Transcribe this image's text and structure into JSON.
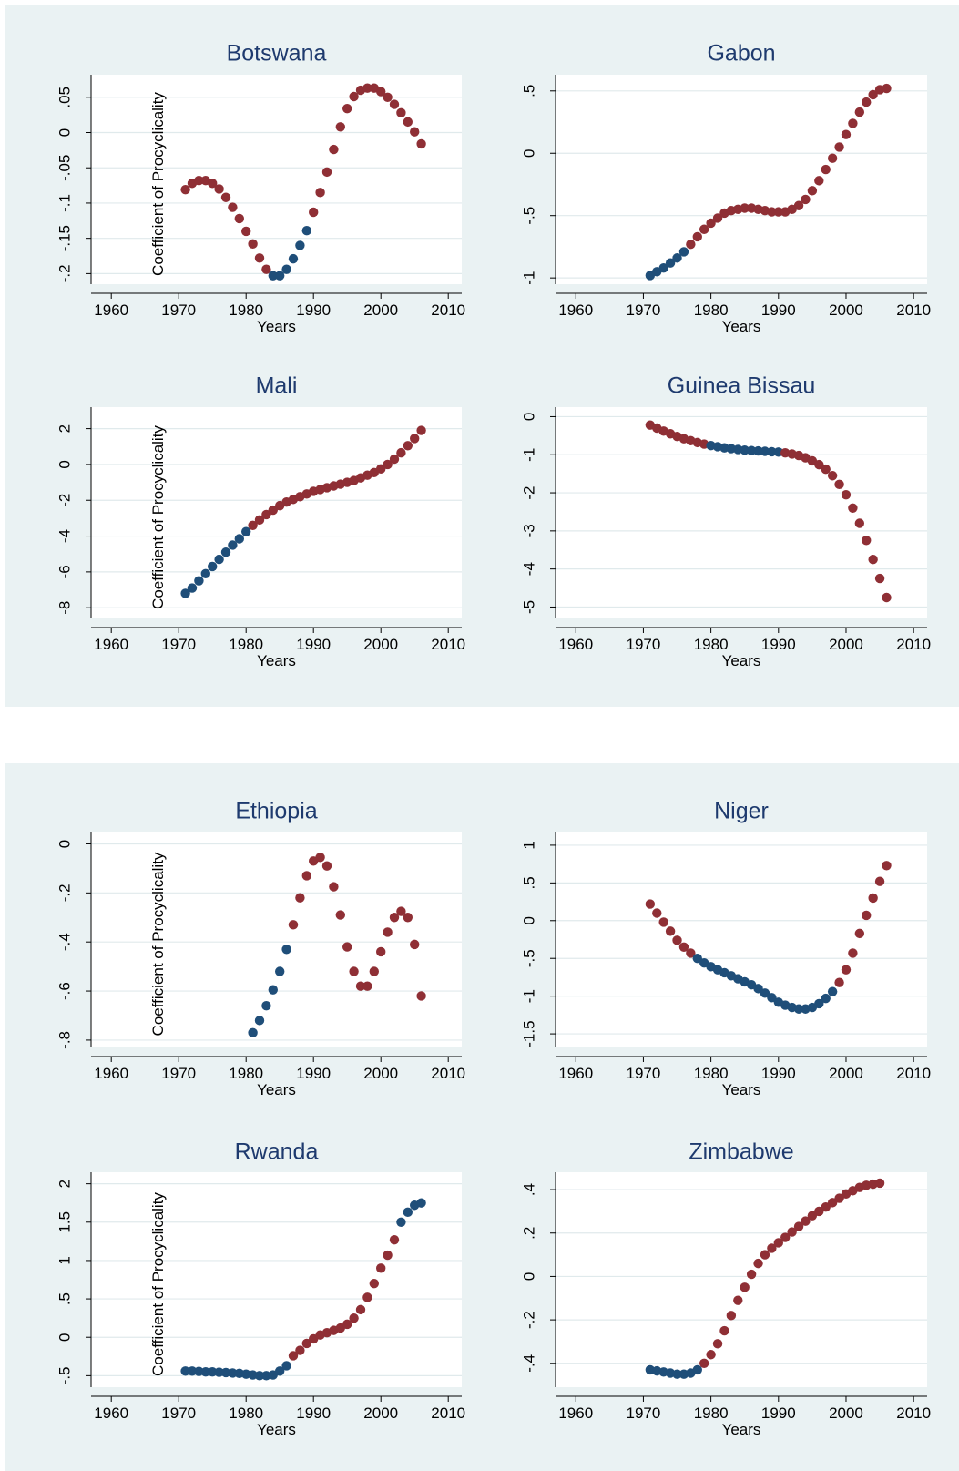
{
  "colors": {
    "background": "#eaf2f3",
    "plot_bg": "#ffffff",
    "title": "#1e3a6e",
    "grid": "#e0eaec",
    "red": "#8f2f35",
    "blue": "#1f4e79",
    "axis": "#000000"
  },
  "chart_data": [
    {
      "type": "scatter",
      "title": "Botswana",
      "xlabel": "Years",
      "ylabel": "Coefficient of Procyclicality",
      "xlim": [
        1957,
        2012
      ],
      "ylim": [
        -0.215,
        0.082
      ],
      "xticks": [
        1960,
        1970,
        1980,
        1990,
        2000,
        2010
      ],
      "xtick_labels": [
        "1960",
        "1970",
        "1980",
        "1990",
        "2000",
        "2010"
      ],
      "yticks": [
        -0.2,
        -0.15,
        -0.1,
        -0.05,
        0,
        0.05
      ],
      "ytick_labels": [
        "-.2",
        "-.15",
        "-.1",
        "-.05",
        "0",
        ".05"
      ],
      "x": [
        1971,
        1972,
        1973,
        1974,
        1975,
        1976,
        1977,
        1978,
        1979,
        1980,
        1981,
        1982,
        1983,
        1984,
        1985,
        1986,
        1987,
        1988,
        1989,
        1990,
        1991,
        1992,
        1993,
        1994,
        1995,
        1996,
        1997,
        1998,
        1999,
        2000,
        2001,
        2002,
        2003,
        2004,
        2005,
        2006
      ],
      "y": [
        -0.081,
        -0.072,
        -0.068,
        -0.068,
        -0.072,
        -0.08,
        -0.092,
        -0.106,
        -0.122,
        -0.14,
        -0.158,
        -0.178,
        -0.194,
        -0.203,
        -0.203,
        -0.194,
        -0.179,
        -0.16,
        -0.139,
        -0.113,
        -0.085,
        -0.056,
        -0.024,
        0.008,
        0.034,
        0.051,
        0.06,
        0.063,
        0.063,
        0.058,
        0.05,
        0.04,
        0.028,
        0.015,
        0.001,
        -0.016
      ],
      "colors": [
        "red",
        "red",
        "red",
        "red",
        "red",
        "red",
        "red",
        "red",
        "red",
        "red",
        "red",
        "red",
        "red",
        "blue",
        "blue",
        "blue",
        "blue",
        "blue",
        "blue",
        "red",
        "red",
        "red",
        "red",
        "red",
        "red",
        "red",
        "red",
        "red",
        "red",
        "red",
        "red",
        "red",
        "red",
        "red",
        "red",
        "red"
      ]
    },
    {
      "type": "scatter",
      "title": "Gabon",
      "xlabel": "Years",
      "ylabel": "",
      "xlim": [
        1957,
        2012
      ],
      "ylim": [
        -1.05,
        0.63
      ],
      "xticks": [
        1960,
        1970,
        1980,
        1990,
        2000,
        2010
      ],
      "xtick_labels": [
        "1960",
        "1970",
        "1980",
        "1990",
        "2000",
        "2010"
      ],
      "yticks": [
        -1,
        -0.5,
        0,
        0.5
      ],
      "ytick_labels": [
        "-1",
        "-.5",
        "0",
        ".5"
      ],
      "x": [
        1971,
        1972,
        1973,
        1974,
        1975,
        1976,
        1977,
        1978,
        1979,
        1980,
        1981,
        1982,
        1983,
        1984,
        1985,
        1986,
        1987,
        1988,
        1989,
        1990,
        1991,
        1992,
        1993,
        1994,
        1995,
        1996,
        1997,
        1998,
        1999,
        2000,
        2001,
        2002,
        2003,
        2004,
        2005,
        2006
      ],
      "y": [
        -0.98,
        -0.95,
        -0.92,
        -0.88,
        -0.84,
        -0.79,
        -0.73,
        -0.67,
        -0.61,
        -0.56,
        -0.52,
        -0.48,
        -0.46,
        -0.45,
        -0.44,
        -0.44,
        -0.45,
        -0.46,
        -0.47,
        -0.47,
        -0.47,
        -0.45,
        -0.42,
        -0.37,
        -0.3,
        -0.22,
        -0.13,
        -0.04,
        0.05,
        0.15,
        0.24,
        0.33,
        0.41,
        0.47,
        0.51,
        0.52
      ],
      "colors": [
        "blue",
        "blue",
        "blue",
        "blue",
        "blue",
        "blue",
        "red",
        "red",
        "red",
        "red",
        "red",
        "red",
        "red",
        "red",
        "red",
        "red",
        "red",
        "red",
        "red",
        "red",
        "red",
        "red",
        "red",
        "red",
        "red",
        "red",
        "red",
        "red",
        "red",
        "red",
        "red",
        "red",
        "red",
        "red",
        "red",
        "red"
      ]
    },
    {
      "type": "scatter",
      "title": "Mali",
      "xlabel": "Years",
      "ylabel": "Coefficient of Procyclicality",
      "xlim": [
        1957,
        2012
      ],
      "ylim": [
        -8.6,
        3.2
      ],
      "xticks": [
        1960,
        1970,
        1980,
        1990,
        2000,
        2010
      ],
      "xtick_labels": [
        "1960",
        "1970",
        "1980",
        "1990",
        "2000",
        "2010"
      ],
      "yticks": [
        -8,
        -6,
        -4,
        -2,
        0,
        2
      ],
      "ytick_labels": [
        "-8",
        "-6",
        "-4",
        "-2",
        "0",
        "2"
      ],
      "x": [
        1971,
        1972,
        1973,
        1974,
        1975,
        1976,
        1977,
        1978,
        1979,
        1980,
        1981,
        1982,
        1983,
        1984,
        1985,
        1986,
        1987,
        1988,
        1989,
        1990,
        1991,
        1992,
        1993,
        1994,
        1995,
        1996,
        1997,
        1998,
        1999,
        2000,
        2001,
        2002,
        2003,
        2004,
        2005,
        2006
      ],
      "y": [
        -7.2,
        -6.9,
        -6.5,
        -6.1,
        -5.7,
        -5.3,
        -4.9,
        -4.5,
        -4.15,
        -3.75,
        -3.4,
        -3.1,
        -2.8,
        -2.55,
        -2.3,
        -2.1,
        -1.95,
        -1.8,
        -1.65,
        -1.5,
        -1.4,
        -1.3,
        -1.2,
        -1.1,
        -1.0,
        -0.9,
        -0.75,
        -0.6,
        -0.45,
        -0.25,
        0.0,
        0.3,
        0.65,
        1.05,
        1.45,
        1.9
      ],
      "colors": [
        "blue",
        "blue",
        "blue",
        "blue",
        "blue",
        "blue",
        "blue",
        "blue",
        "blue",
        "blue",
        "red",
        "red",
        "red",
        "red",
        "red",
        "red",
        "red",
        "red",
        "red",
        "red",
        "red",
        "red",
        "red",
        "red",
        "red",
        "red",
        "red",
        "red",
        "red",
        "red",
        "red",
        "red",
        "red",
        "red",
        "red",
        "red"
      ]
    },
    {
      "type": "scatter",
      "title": "Guinea Bissau",
      "xlabel": "Years",
      "ylabel": "",
      "xlim": [
        1957,
        2012
      ],
      "ylim": [
        -5.3,
        0.25
      ],
      "xticks": [
        1960,
        1970,
        1980,
        1990,
        2000,
        2010
      ],
      "xtick_labels": [
        "1960",
        "1970",
        "1980",
        "1990",
        "2000",
        "2010"
      ],
      "yticks": [
        -5,
        -4,
        -3,
        -2,
        -1,
        0
      ],
      "ytick_labels": [
        "-5",
        "-4",
        "-3",
        "-2",
        "-1",
        "0"
      ],
      "x": [
        1971,
        1972,
        1973,
        1974,
        1975,
        1976,
        1977,
        1978,
        1979,
        1980,
        1981,
        1982,
        1983,
        1984,
        1985,
        1986,
        1987,
        1988,
        1989,
        1990,
        1991,
        1992,
        1993,
        1994,
        1995,
        1996,
        1997,
        1998,
        1999,
        2000,
        2001,
        2002,
        2003,
        2004,
        2005,
        2006
      ],
      "y": [
        -0.22,
        -0.3,
        -0.38,
        -0.45,
        -0.52,
        -0.58,
        -0.63,
        -0.68,
        -0.72,
        -0.76,
        -0.79,
        -0.82,
        -0.84,
        -0.86,
        -0.88,
        -0.89,
        -0.9,
        -0.91,
        -0.92,
        -0.93,
        -0.95,
        -0.98,
        -1.02,
        -1.08,
        -1.16,
        -1.26,
        -1.38,
        -1.55,
        -1.78,
        -2.05,
        -2.4,
        -2.8,
        -3.25,
        -3.75,
        -4.25,
        -4.75
      ],
      "colors": [
        "red",
        "red",
        "red",
        "red",
        "red",
        "red",
        "red",
        "red",
        "red",
        "blue",
        "blue",
        "blue",
        "blue",
        "blue",
        "blue",
        "blue",
        "blue",
        "blue",
        "blue",
        "blue",
        "red",
        "red",
        "red",
        "red",
        "red",
        "red",
        "red",
        "red",
        "red",
        "red",
        "red",
        "red",
        "red",
        "red",
        "red",
        "red"
      ]
    },
    {
      "type": "scatter",
      "title": "Ethiopia",
      "xlabel": "Years",
      "ylabel": "Coefficient of Procyclicality",
      "xlim": [
        1957,
        2012
      ],
      "ylim": [
        -0.83,
        0.05
      ],
      "xticks": [
        1960,
        1970,
        1980,
        1990,
        2000,
        2010
      ],
      "xtick_labels": [
        "1960",
        "1970",
        "1980",
        "1990",
        "2000",
        "2010"
      ],
      "yticks": [
        -0.8,
        -0.6,
        -0.4,
        -0.2,
        0
      ],
      "ytick_labels": [
        "-.8",
        "-.6",
        "-.4",
        "-.2",
        "0"
      ],
      "x": [
        1981,
        1982,
        1983,
        1984,
        1985,
        1986,
        1987,
        1988,
        1989,
        1990,
        1991,
        1992,
        1993,
        1994,
        1995,
        1996,
        1997,
        1998,
        1999,
        2000,
        2001,
        2002,
        2003,
        2004,
        2005,
        2006
      ],
      "y": [
        -0.77,
        -0.72,
        -0.66,
        -0.595,
        -0.52,
        -0.43,
        -0.33,
        -0.22,
        -0.13,
        -0.07,
        -0.055,
        -0.09,
        -0.175,
        -0.29,
        -0.42,
        -0.52,
        -0.58,
        -0.58,
        -0.52,
        -0.44,
        -0.36,
        -0.3,
        -0.275,
        -0.3,
        -0.41,
        -0.62
      ],
      "colors": [
        "blue",
        "blue",
        "blue",
        "blue",
        "blue",
        "blue",
        "red",
        "red",
        "red",
        "red",
        "red",
        "red",
        "red",
        "red",
        "red",
        "red",
        "red",
        "red",
        "red",
        "red",
        "red",
        "red",
        "red",
        "red",
        "red",
        "red"
      ]
    },
    {
      "type": "scatter",
      "title": "Niger",
      "xlabel": "Years",
      "ylabel": "",
      "xlim": [
        1957,
        2012
      ],
      "ylim": [
        -1.68,
        1.18
      ],
      "xticks": [
        1960,
        1970,
        1980,
        1990,
        2000,
        2010
      ],
      "xtick_labels": [
        "1960",
        "1970",
        "1980",
        "1990",
        "2000",
        "2010"
      ],
      "yticks": [
        -1.5,
        -1,
        -0.5,
        0,
        0.5,
        1
      ],
      "ytick_labels": [
        "-1.5",
        "-1",
        "-.5",
        "0",
        ".5",
        "1"
      ],
      "x": [
        1971,
        1972,
        1973,
        1974,
        1975,
        1976,
        1977,
        1978,
        1979,
        1980,
        1981,
        1982,
        1983,
        1984,
        1985,
        1986,
        1987,
        1988,
        1989,
        1990,
        1991,
        1992,
        1993,
        1994,
        1995,
        1996,
        1997,
        1998,
        1999,
        2000,
        2001,
        2002,
        2003,
        2004,
        2005,
        2006
      ],
      "y": [
        0.22,
        0.1,
        -0.02,
        -0.14,
        -0.26,
        -0.35,
        -0.43,
        -0.5,
        -0.56,
        -0.61,
        -0.65,
        -0.69,
        -0.73,
        -0.77,
        -0.81,
        -0.85,
        -0.9,
        -0.96,
        -1.02,
        -1.08,
        -1.12,
        -1.15,
        -1.17,
        -1.17,
        -1.15,
        -1.1,
        -1.03,
        -0.94,
        -0.82,
        -0.65,
        -0.43,
        -0.17,
        0.07,
        0.3,
        0.52,
        0.73
      ],
      "colors": [
        "red",
        "red",
        "red",
        "red",
        "red",
        "red",
        "red",
        "blue",
        "blue",
        "blue",
        "blue",
        "blue",
        "blue",
        "blue",
        "blue",
        "blue",
        "blue",
        "blue",
        "blue",
        "blue",
        "blue",
        "blue",
        "blue",
        "blue",
        "blue",
        "blue",
        "blue",
        "blue",
        "red",
        "red",
        "red",
        "red",
        "red",
        "red",
        "red",
        "red"
      ]
    },
    {
      "type": "scatter",
      "title": "Rwanda",
      "xlabel": "Years",
      "ylabel": "Coefficient of Procyclicality",
      "xlim": [
        1957,
        2012
      ],
      "ylim": [
        -0.65,
        2.15
      ],
      "xticks": [
        1960,
        1970,
        1980,
        1990,
        2000,
        2010
      ],
      "xtick_labels": [
        "1960",
        "1970",
        "1980",
        "1990",
        "2000",
        "2010"
      ],
      "yticks": [
        -0.5,
        0,
        0.5,
        1,
        1.5,
        2
      ],
      "ytick_labels": [
        "-.5",
        "0",
        ".5",
        "1",
        "1.5",
        "2"
      ],
      "x": [
        1971,
        1972,
        1973,
        1974,
        1975,
        1976,
        1977,
        1978,
        1979,
        1980,
        1981,
        1982,
        1983,
        1984,
        1985,
        1986,
        1987,
        1988,
        1989,
        1990,
        1991,
        1992,
        1993,
        1994,
        1995,
        1996,
        1997,
        1998,
        1999,
        2000,
        2001,
        2002,
        2003,
        2004,
        2005,
        2006
      ],
      "y": [
        -0.44,
        -0.44,
        -0.445,
        -0.45,
        -0.45,
        -0.455,
        -0.46,
        -0.465,
        -0.47,
        -0.48,
        -0.49,
        -0.5,
        -0.5,
        -0.49,
        -0.44,
        -0.37,
        -0.24,
        -0.17,
        -0.08,
        -0.02,
        0.03,
        0.06,
        0.09,
        0.12,
        0.17,
        0.25,
        0.36,
        0.52,
        0.7,
        0.9,
        1.07,
        1.27,
        1.5,
        1.63,
        1.72,
        1.75
      ],
      "colors": [
        "blue",
        "blue",
        "blue",
        "blue",
        "blue",
        "blue",
        "blue",
        "blue",
        "blue",
        "blue",
        "blue",
        "blue",
        "blue",
        "blue",
        "blue",
        "blue",
        "red",
        "red",
        "red",
        "red",
        "red",
        "red",
        "red",
        "red",
        "red",
        "red",
        "red",
        "red",
        "red",
        "red",
        "red",
        "red",
        "blue",
        "blue",
        "blue",
        "blue"
      ]
    },
    {
      "type": "scatter",
      "title": "Zimbabwe",
      "xlabel": "Years",
      "ylabel": "",
      "xlim": [
        1957,
        2012
      ],
      "ylim": [
        -0.51,
        0.48
      ],
      "xticks": [
        1960,
        1970,
        1980,
        1990,
        2000,
        2010
      ],
      "xtick_labels": [
        "1960",
        "1970",
        "1980",
        "1990",
        "2000",
        "2010"
      ],
      "yticks": [
        -0.4,
        -0.2,
        0,
        0.2,
        0.4
      ],
      "ytick_labels": [
        "-.4",
        "-.2",
        "0",
        ".2",
        ".4"
      ],
      "x": [
        1971,
        1972,
        1973,
        1974,
        1975,
        1976,
        1977,
        1978,
        1979,
        1980,
        1981,
        1982,
        1983,
        1984,
        1985,
        1986,
        1987,
        1988,
        1989,
        1990,
        1991,
        1992,
        1993,
        1994,
        1995,
        1996,
        1997,
        1998,
        1999,
        2000,
        2001,
        2002,
        2003,
        2004,
        2005
      ],
      "y": [
        -0.43,
        -0.435,
        -0.44,
        -0.445,
        -0.45,
        -0.45,
        -0.445,
        -0.43,
        -0.4,
        -0.36,
        -0.31,
        -0.25,
        -0.18,
        -0.11,
        -0.05,
        0.01,
        0.06,
        0.1,
        0.13,
        0.155,
        0.18,
        0.205,
        0.23,
        0.255,
        0.28,
        0.3,
        0.32,
        0.34,
        0.36,
        0.38,
        0.395,
        0.41,
        0.42,
        0.425,
        0.43
      ],
      "colors": [
        "blue",
        "blue",
        "blue",
        "blue",
        "blue",
        "blue",
        "blue",
        "blue",
        "red",
        "red",
        "red",
        "red",
        "red",
        "red",
        "red",
        "red",
        "red",
        "red",
        "red",
        "red",
        "red",
        "red",
        "red",
        "red",
        "red",
        "red",
        "red",
        "red",
        "red",
        "red",
        "red",
        "red",
        "red",
        "red",
        "red"
      ]
    }
  ]
}
